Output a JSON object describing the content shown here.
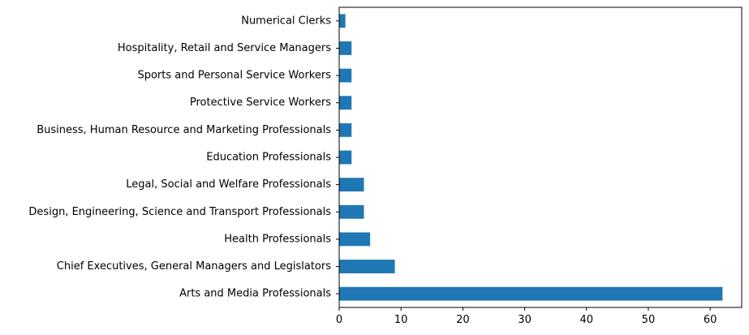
{
  "chart_data": {
    "type": "bar",
    "orientation": "horizontal",
    "title": "",
    "xlabel": "",
    "ylabel": "",
    "categories": [
      "Arts and Media Professionals",
      "Chief Executives, General Managers and Legislators",
      "Health Professionals",
      "Design, Engineering, Science and Transport Professionals",
      "Legal, Social and Welfare Professionals",
      "Education Professionals",
      "Business, Human Resource and Marketing Professionals",
      "Protective Service Workers",
      "Sports and Personal Service Workers",
      "Hospitality, Retail and Service Managers",
      "Numerical Clerks"
    ],
    "values": [
      62,
      9,
      5,
      4,
      4,
      2,
      2,
      2,
      2,
      2,
      1
    ],
    "xlim": [
      0,
      65.1
    ],
    "x_ticks": [
      0,
      10,
      20,
      30,
      40,
      50,
      60
    ],
    "bar_color": "#1f77b4",
    "grid": false,
    "legend": "none"
  }
}
